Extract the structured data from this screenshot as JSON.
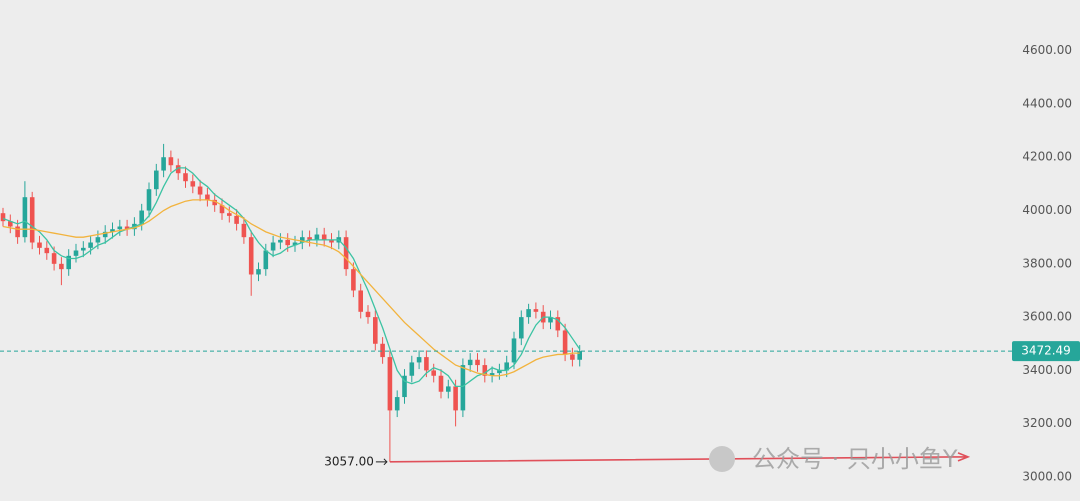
{
  "chart_data": {
    "type": "candlestick",
    "open": [
      3990,
      3960,
      3940,
      3900,
      4050,
      3880,
      3860,
      3840,
      3800,
      3780,
      3830,
      3850,
      3860,
      3880,
      3900,
      3920,
      3930,
      3940,
      3930,
      3950,
      4000,
      4080,
      4150,
      4200,
      4170,
      4140,
      4110,
      4090,
      4060,
      4040,
      4020,
      3990,
      3980,
      3950,
      3900,
      3760,
      3780,
      3850,
      3880,
      3890,
      3870,
      3880,
      3900,
      3890,
      3910,
      3890,
      3880,
      3900,
      3780,
      3700,
      3620,
      3600,
      3500,
      3450,
      3250,
      3300,
      3380,
      3430,
      3450,
      3400,
      3380,
      3320,
      3340,
      3250,
      3420,
      3440,
      3420,
      3380,
      3390,
      3400,
      3430,
      3520,
      3600,
      3630,
      3620,
      3580,
      3600,
      3550,
      3460,
      3440
    ],
    "high": [
      4010,
      3985,
      3965,
      4110,
      4070,
      3905,
      3885,
      3865,
      3825,
      3855,
      3875,
      3885,
      3905,
      3925,
      3945,
      3955,
      3965,
      3965,
      3975,
      4025,
      4105,
      4175,
      4250,
      4225,
      4195,
      4165,
      4135,
      4115,
      4085,
      4065,
      4045,
      4015,
      4005,
      3975,
      3925,
      3805,
      3875,
      3905,
      3915,
      3915,
      3905,
      3925,
      3925,
      3935,
      3935,
      3915,
      3925,
      3925,
      3805,
      3725,
      3645,
      3625,
      3525,
      3475,
      3325,
      3405,
      3455,
      3475,
      3475,
      3425,
      3405,
      3365,
      3365,
      3445,
      3465,
      3465,
      3445,
      3415,
      3425,
      3455,
      3545,
      3625,
      3650,
      3655,
      3645,
      3625,
      3625,
      3575,
      3485,
      3495
    ],
    "low": [
      3940,
      3915,
      3875,
      3880,
      3855,
      3835,
      3815,
      3775,
      3720,
      3755,
      3805,
      3825,
      3835,
      3855,
      3875,
      3895,
      3905,
      3905,
      3905,
      3925,
      3975,
      4055,
      4125,
      4145,
      4115,
      4085,
      4065,
      4035,
      4015,
      3995,
      3965,
      3955,
      3925,
      3875,
      3680,
      3735,
      3755,
      3825,
      3855,
      3845,
      3845,
      3855,
      3865,
      3865,
      3865,
      3855,
      3855,
      3755,
      3675,
      3595,
      3575,
      3475,
      3425,
      3057,
      3225,
      3275,
      3355,
      3405,
      3375,
      3355,
      3295,
      3295,
      3190,
      3225,
      3395,
      3395,
      3355,
      3355,
      3365,
      3375,
      3405,
      3495,
      3575,
      3595,
      3555,
      3555,
      3525,
      3435,
      3415,
      3415
    ],
    "close": [
      3960,
      3940,
      3900,
      4050,
      3880,
      3860,
      3840,
      3800,
      3780,
      3830,
      3850,
      3860,
      3880,
      3900,
      3920,
      3930,
      3940,
      3930,
      3950,
      4000,
      4080,
      4150,
      4200,
      4170,
      4140,
      4110,
      4090,
      4060,
      4040,
      4020,
      3990,
      3980,
      3950,
      3900,
      3760,
      3780,
      3850,
      3880,
      3890,
      3870,
      3880,
      3900,
      3890,
      3910,
      3890,
      3880,
      3900,
      3780,
      3700,
      3620,
      3600,
      3500,
      3450,
      3250,
      3300,
      3380,
      3430,
      3450,
      3400,
      3380,
      3320,
      3340,
      3250,
      3420,
      3440,
      3420,
      3380,
      3390,
      3400,
      3430,
      3520,
      3600,
      3630,
      3620,
      3580,
      3600,
      3550,
      3460,
      3440,
      3472.49
    ],
    "up_color": "#26a69a",
    "down_color": "#ef5350",
    "lines": [
      {
        "color": "#3cc3a3",
        "values": [
          3970,
          3960,
          3950,
          3960,
          3940,
          3920,
          3890,
          3850,
          3830,
          3820,
          3820,
          3830,
          3850,
          3870,
          3880,
          3900,
          3920,
          3930,
          3940,
          3950,
          3980,
          4030,
          4090,
          4140,
          4160,
          4160,
          4140,
          4110,
          4090,
          4060,
          4040,
          4020,
          4000,
          3970,
          3920,
          3880,
          3850,
          3830,
          3840,
          3860,
          3870,
          3880,
          3890,
          3890,
          3890,
          3890,
          3890,
          3860,
          3820,
          3760,
          3700,
          3630,
          3560,
          3480,
          3400,
          3360,
          3350,
          3360,
          3390,
          3410,
          3400,
          3380,
          3340,
          3340,
          3360,
          3380,
          3390,
          3410,
          3400,
          3400,
          3420,
          3460,
          3520,
          3570,
          3600,
          3600,
          3590,
          3560,
          3520,
          3480
        ]
      },
      {
        "color": "#f2b33d",
        "values": [
          3940,
          3935,
          3930,
          3930,
          3930,
          3925,
          3920,
          3915,
          3910,
          3905,
          3900,
          3900,
          3905,
          3910,
          3915,
          3920,
          3925,
          3930,
          3935,
          3945,
          3960,
          3980,
          4000,
          4015,
          4025,
          4035,
          4040,
          4040,
          4040,
          4035,
          4020,
          4000,
          3985,
          3970,
          3950,
          3935,
          3920,
          3910,
          3900,
          3895,
          3890,
          3885,
          3880,
          3875,
          3870,
          3860,
          3845,
          3820,
          3790,
          3760,
          3730,
          3700,
          3670,
          3640,
          3610,
          3580,
          3555,
          3530,
          3505,
          3480,
          3460,
          3440,
          3420,
          3410,
          3400,
          3390,
          3385,
          3380,
          3380,
          3385,
          3395,
          3410,
          3425,
          3440,
          3450,
          3455,
          3460,
          3460,
          3465,
          3465
        ]
      }
    ],
    "ylim": [
      2910,
      4790
    ],
    "yticks": [
      {
        "value": 3000,
        "label": "3000.00"
      },
      {
        "value": 3200,
        "label": "3200.00"
      },
      {
        "value": 3400,
        "label": "3400.00"
      },
      {
        "value": 3600,
        "label": "3600.00"
      },
      {
        "value": 3800,
        "label": "3800.00"
      },
      {
        "value": 4000,
        "label": "4000.00"
      },
      {
        "value": 4200,
        "label": "4200.00"
      },
      {
        "value": 4400,
        "label": "4400.00"
      },
      {
        "value": 4600,
        "label": "4600.00"
      }
    ],
    "low_marker": {
      "value": 3057,
      "label": "3057.00",
      "index": 53
    },
    "price_marker": {
      "value": 3472.49,
      "label": "3472.49"
    },
    "watermark": "公众号 · 只小小鱼Y"
  }
}
